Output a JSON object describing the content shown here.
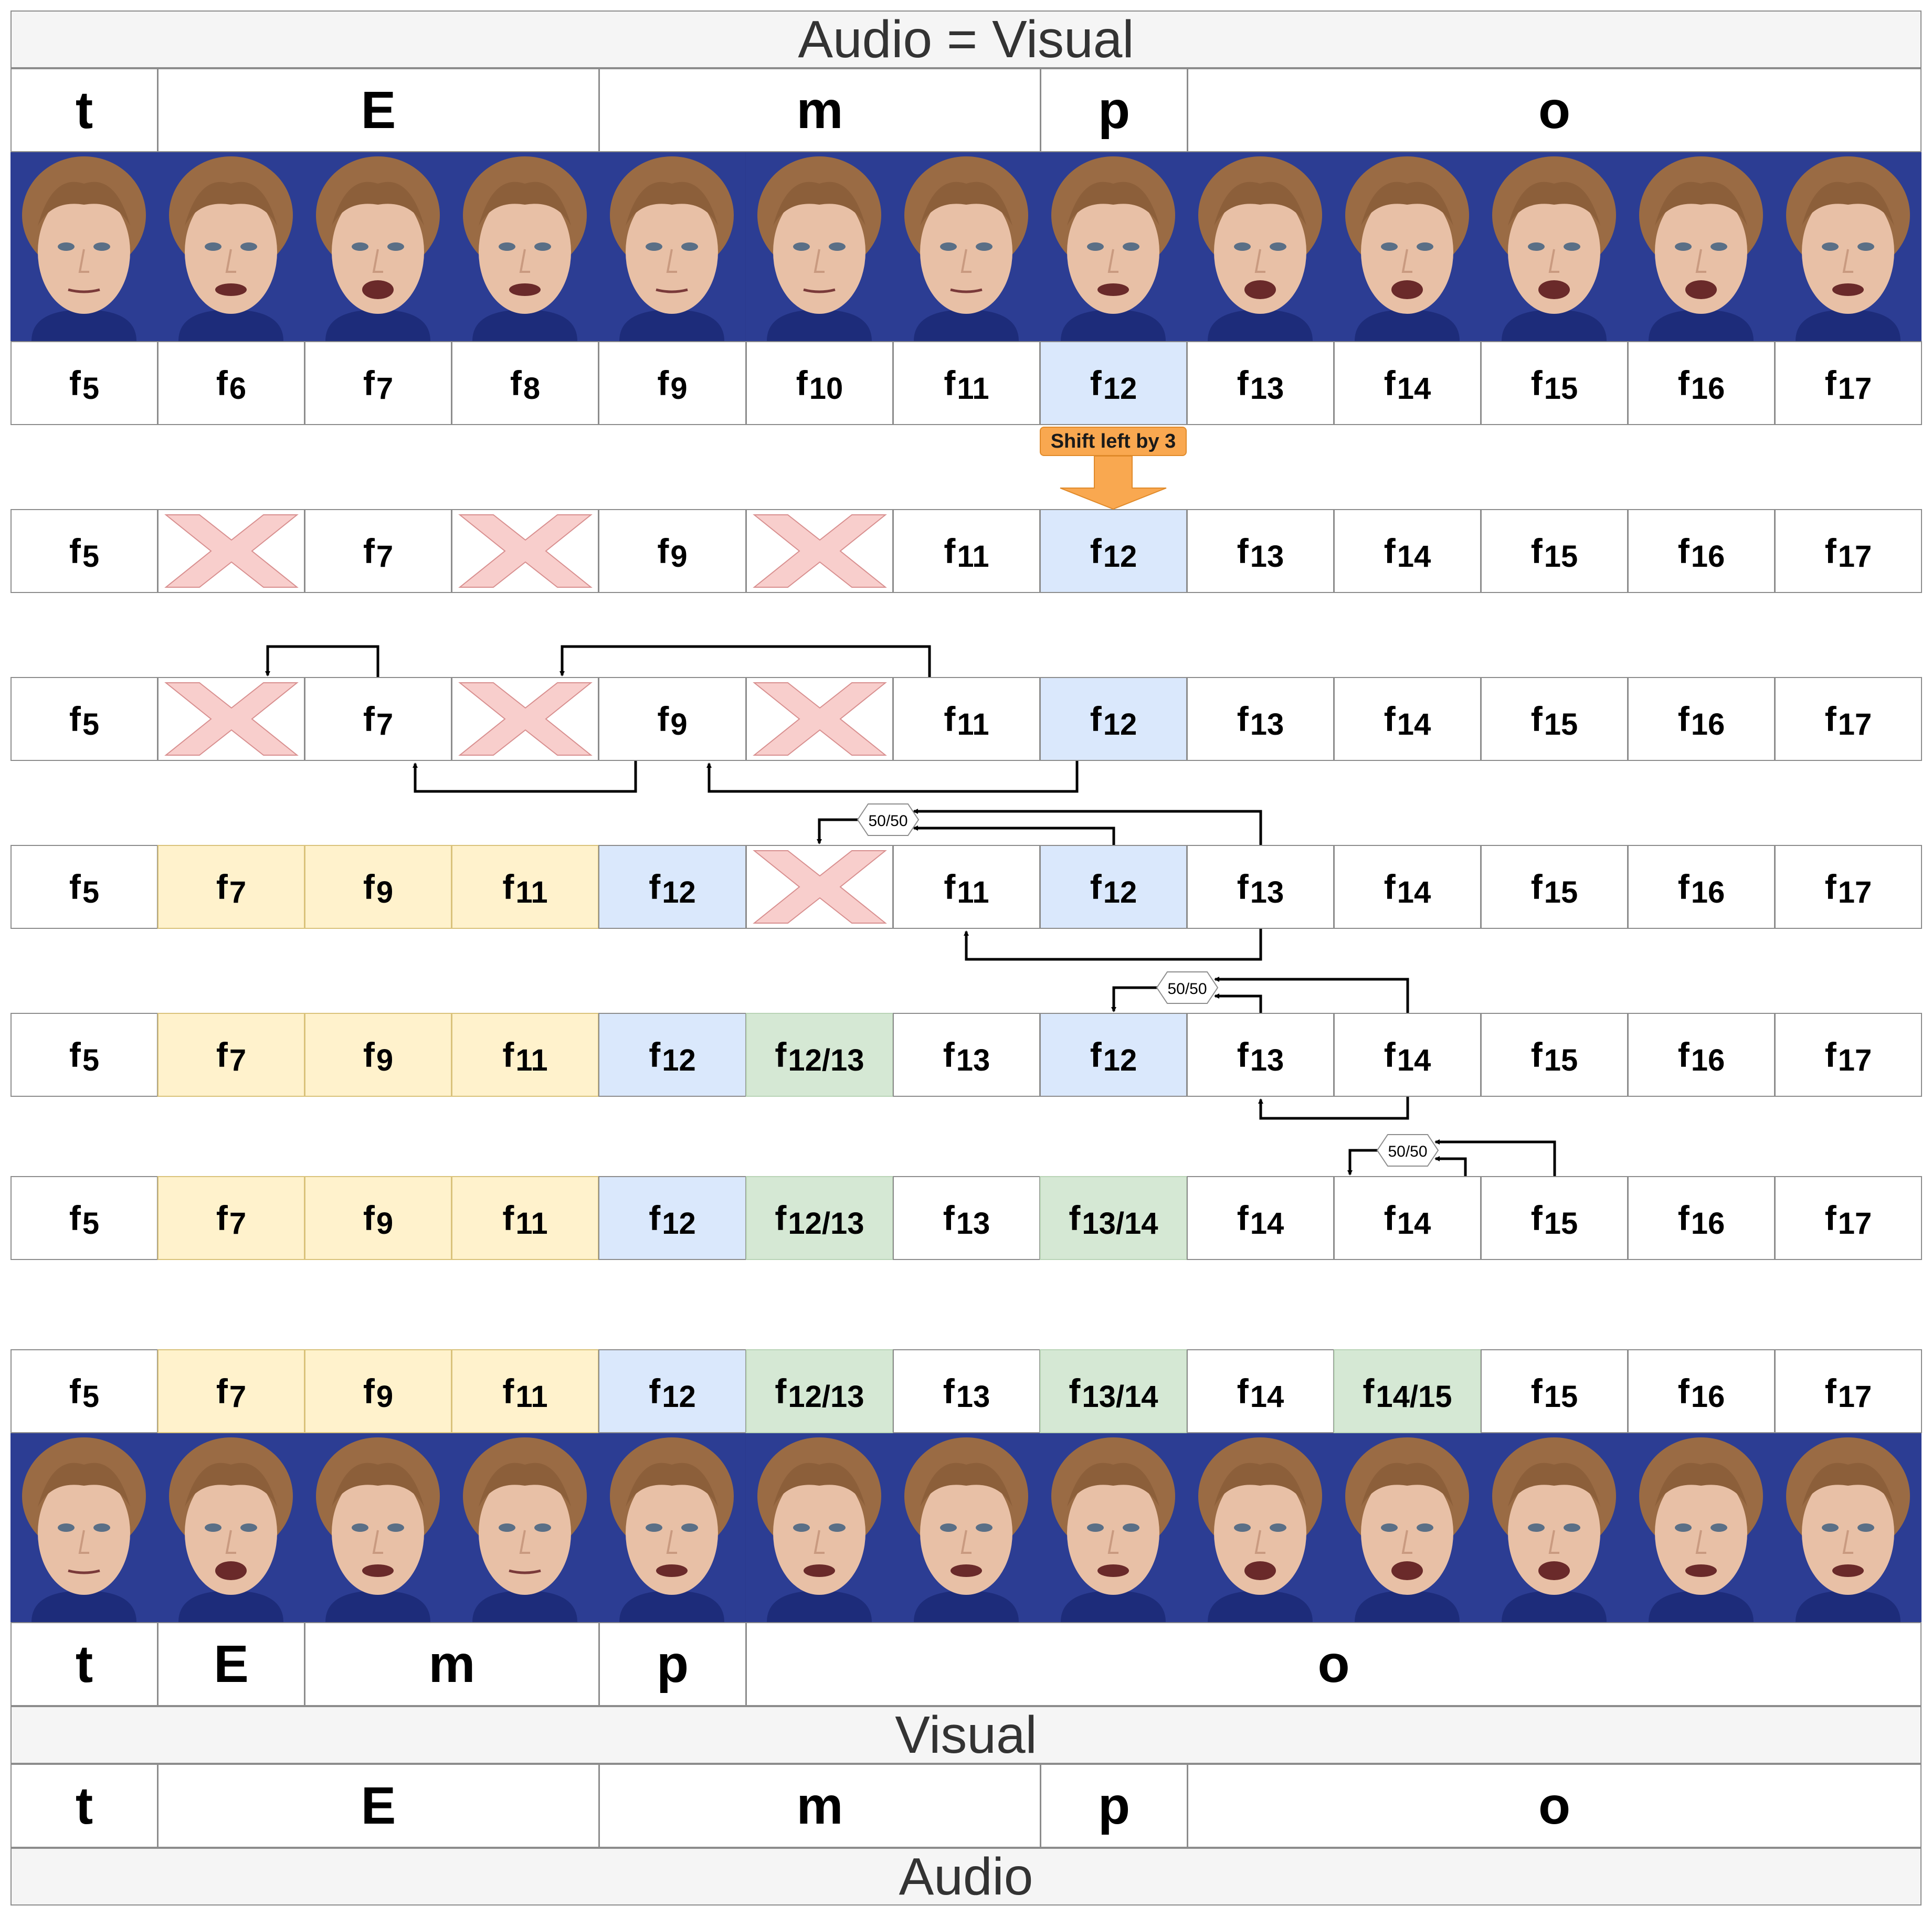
{
  "title_top": "Audio = Visual",
  "label_visual": "Visual",
  "label_audio": "Audio",
  "shift_label": "Shift left by 3",
  "split_label": "50/50",
  "phoneme_rows": {
    "top": [
      "t",
      "E",
      "m",
      "p",
      "o"
    ],
    "visual": [
      "t",
      "E",
      "m",
      "p",
      "o"
    ],
    "audio": [
      "t",
      "E",
      "m",
      "p",
      "o"
    ]
  },
  "frame_rows": [
    {
      "row": 1,
      "cells": [
        {
          "t": "f",
          "n": "5"
        },
        {
          "t": "f",
          "n": "6"
        },
        {
          "t": "f",
          "n": "7"
        },
        {
          "t": "f",
          "n": "8"
        },
        {
          "t": "f",
          "n": "9"
        },
        {
          "t": "f",
          "n": "10"
        },
        {
          "t": "f",
          "n": "11"
        },
        {
          "t": "f",
          "n": "12",
          "c": "blue"
        },
        {
          "t": "f",
          "n": "13"
        },
        {
          "t": "f",
          "n": "14"
        },
        {
          "t": "f",
          "n": "15"
        },
        {
          "t": "f",
          "n": "16"
        },
        {
          "t": "f",
          "n": "17"
        }
      ]
    },
    {
      "row": 2,
      "cells": [
        {
          "t": "f",
          "n": "5"
        },
        {
          "x": true
        },
        {
          "t": "f",
          "n": "7"
        },
        {
          "x": true
        },
        {
          "t": "f",
          "n": "9"
        },
        {
          "x": true
        },
        {
          "t": "f",
          "n": "11"
        },
        {
          "t": "f",
          "n": "12",
          "c": "blue"
        },
        {
          "t": "f",
          "n": "13"
        },
        {
          "t": "f",
          "n": "14"
        },
        {
          "t": "f",
          "n": "15"
        },
        {
          "t": "f",
          "n": "16"
        },
        {
          "t": "f",
          "n": "17"
        }
      ]
    },
    {
      "row": 3,
      "cells": [
        {
          "t": "f",
          "n": "5"
        },
        {
          "x": true
        },
        {
          "t": "f",
          "n": "7"
        },
        {
          "x": true
        },
        {
          "t": "f",
          "n": "9"
        },
        {
          "x": true
        },
        {
          "t": "f",
          "n": "11"
        },
        {
          "t": "f",
          "n": "12",
          "c": "blue"
        },
        {
          "t": "f",
          "n": "13"
        },
        {
          "t": "f",
          "n": "14"
        },
        {
          "t": "f",
          "n": "15"
        },
        {
          "t": "f",
          "n": "16"
        },
        {
          "t": "f",
          "n": "17"
        }
      ]
    },
    {
      "row": 4,
      "cells": [
        {
          "t": "f",
          "n": "5"
        },
        {
          "t": "f",
          "n": "7",
          "c": "yellow"
        },
        {
          "t": "f",
          "n": "9",
          "c": "yellow"
        },
        {
          "t": "f",
          "n": "11",
          "c": "yellow"
        },
        {
          "t": "f",
          "n": "12",
          "c": "blue"
        },
        {
          "x": true
        },
        {
          "t": "f",
          "n": "11"
        },
        {
          "t": "f",
          "n": "12",
          "c": "blue"
        },
        {
          "t": "f",
          "n": "13"
        },
        {
          "t": "f",
          "n": "14"
        },
        {
          "t": "f",
          "n": "15"
        },
        {
          "t": "f",
          "n": "16"
        },
        {
          "t": "f",
          "n": "17"
        }
      ]
    },
    {
      "row": 5,
      "cells": [
        {
          "t": "f",
          "n": "5"
        },
        {
          "t": "f",
          "n": "7",
          "c": "yellow"
        },
        {
          "t": "f",
          "n": "9",
          "c": "yellow"
        },
        {
          "t": "f",
          "n": "11",
          "c": "yellow"
        },
        {
          "t": "f",
          "n": "12",
          "c": "blue"
        },
        {
          "t": "f",
          "n": "12/13",
          "c": "green"
        },
        {
          "t": "f",
          "n": "13"
        },
        {
          "t": "f",
          "n": "12",
          "c": "blue"
        },
        {
          "t": "f",
          "n": "13"
        },
        {
          "t": "f",
          "n": "14"
        },
        {
          "t": "f",
          "n": "15"
        },
        {
          "t": "f",
          "n": "16"
        },
        {
          "t": "f",
          "n": "17"
        }
      ]
    },
    {
      "row": 6,
      "cells": [
        {
          "t": "f",
          "n": "5"
        },
        {
          "t": "f",
          "n": "7",
          "c": "yellow"
        },
        {
          "t": "f",
          "n": "9",
          "c": "yellow"
        },
        {
          "t": "f",
          "n": "11",
          "c": "yellow"
        },
        {
          "t": "f",
          "n": "12",
          "c": "blue"
        },
        {
          "t": "f",
          "n": "12/13",
          "c": "green"
        },
        {
          "t": "f",
          "n": "13"
        },
        {
          "t": "f",
          "n": "13/14",
          "c": "green"
        },
        {
          "t": "f",
          "n": "14"
        },
        {
          "t": "f",
          "n": "14"
        },
        {
          "t": "f",
          "n": "15"
        },
        {
          "t": "f",
          "n": "16"
        },
        {
          "t": "f",
          "n": "17"
        }
      ]
    },
    {
      "row": 7,
      "cells": [
        {
          "t": "f",
          "n": "5"
        },
        {
          "t": "f",
          "n": "7",
          "c": "yellow"
        },
        {
          "t": "f",
          "n": "9",
          "c": "yellow"
        },
        {
          "t": "f",
          "n": "11",
          "c": "yellow"
        },
        {
          "t": "f",
          "n": "12",
          "c": "blue"
        },
        {
          "t": "f",
          "n": "12/13",
          "c": "green"
        },
        {
          "t": "f",
          "n": "13"
        },
        {
          "t": "f",
          "n": "13/14",
          "c": "green"
        },
        {
          "t": "f",
          "n": "14"
        },
        {
          "t": "f",
          "n": "14/15",
          "c": "green"
        },
        {
          "t": "f",
          "n": "15"
        },
        {
          "t": "f",
          "n": "16"
        },
        {
          "t": "f",
          "n": "17"
        }
      ]
    }
  ],
  "colors": {
    "blue": "#dae8fc",
    "yellow": "#fff2cc",
    "green": "#d5e8d4",
    "cross": "#f8cecc",
    "cross_edge": "#d88f8f",
    "arrow_orange": "#f9a850",
    "photo_background": "#2a3a8e",
    "header_background": "#f5f5f5"
  }
}
